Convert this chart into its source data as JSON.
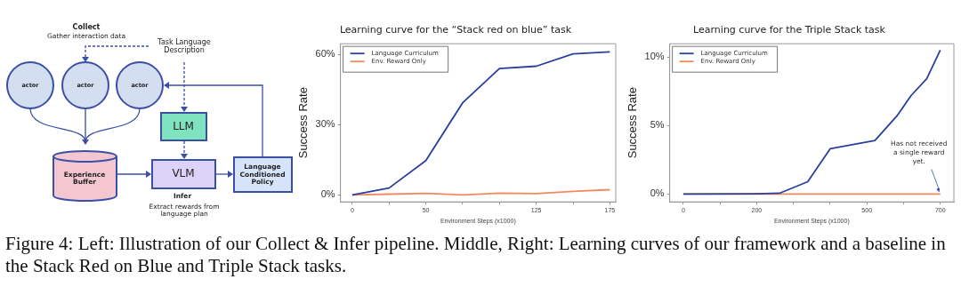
{
  "chart_data": [
    {
      "type": "other",
      "annotations": [
        "Collect",
        "Gather interaction data",
        "Task Language Description",
        "actor",
        "actor",
        "actor",
        "LLM",
        "Experience Buffer",
        "VLM",
        "Language Conditioned Policy",
        "Infer",
        "Extract rewards from language plan"
      ]
    },
    {
      "type": "line",
      "title": "Learning curve for the “Stack red on blue” task",
      "xlabel": "Environment Steps (x1000)",
      "ylabel": "Success Rate",
      "x": [
        0,
        25,
        50,
        75,
        100,
        125,
        150,
        175
      ],
      "series": [
        {
          "name": "Language Curriculum",
          "color": "#2a3f9e",
          "values": [
            0,
            2.9,
            14.6,
            39.3,
            53.9,
            54.9,
            60.2,
            61
          ]
        },
        {
          "name": "Env. Reward Only",
          "color": "#f4895f",
          "values": [
            0,
            0.3,
            0.6,
            0,
            0.7,
            0.5,
            1.5,
            2.2
          ]
        }
      ],
      "xlim": [
        -8,
        179
      ],
      "xticks": [
        0,
        {
          "value": 25,
          "label": null
        },
        50,
        {
          "value": 75,
          "label": null
        },
        {
          "value": 100,
          "label": null
        },
        125,
        {
          "value": 150,
          "label": null
        },
        175
      ],
      "ylim": [
        -3,
        64.5
      ],
      "yticks": [
        {
          "value": 0,
          "label": "0%"
        },
        {
          "value": 30,
          "label": "30%"
        },
        {
          "value": 60,
          "label": "60%"
        }
      ],
      "legend": "top left",
      "marker": "none"
    },
    {
      "type": "line",
      "title": "Learning curve for the Triple Stack task",
      "xlabel": "Environment Steps (x1000)",
      "ylabel": "Success Rate",
      "series": [
        {
          "name": "Language Curriculum",
          "color": "#2a3f9e",
          "x": [
            0,
            200,
            262,
            339,
            400,
            522,
            582,
            621,
            663,
            700
          ],
          "values": [
            0,
            0.02,
            0.06,
            0.9,
            3.3,
            3.9,
            5.7,
            7.2,
            8.4,
            10.5
          ]
        },
        {
          "name": "Env. Reward Only",
          "color": "#f4895f",
          "x": [
            0,
            700
          ],
          "values": [
            0,
            0
          ]
        }
      ],
      "xlim": [
        -37,
        737
      ],
      "xticks": [
        0,
        {
          "value": 100,
          "label": null
        },
        200,
        {
          "value": 300,
          "label": null
        },
        {
          "value": 400,
          "label": null
        },
        500,
        {
          "value": 600,
          "label": null
        },
        700
      ],
      "ylim": [
        -0.57,
        10.96
      ],
      "yticks": [
        {
          "value": 0,
          "label": "0%"
        },
        {
          "value": 5,
          "label": "5%"
        },
        {
          "value": 10,
          "label": "10%"
        }
      ],
      "legend": "top left",
      "marker": "none",
      "annotations": [
        {
          "text": "Has not received a single reward yet.",
          "x": 700,
          "y": 0
        }
      ]
    },
    {
      "type": "other",
      "annotations": [
        "Figure 4: Left: Illustration of our Collect & Infer pipeline. Middle, Right: Learning curves of our framework and a baseline in the Stack Red on Blue and Triple Stack tasks."
      ]
    }
  ]
}
